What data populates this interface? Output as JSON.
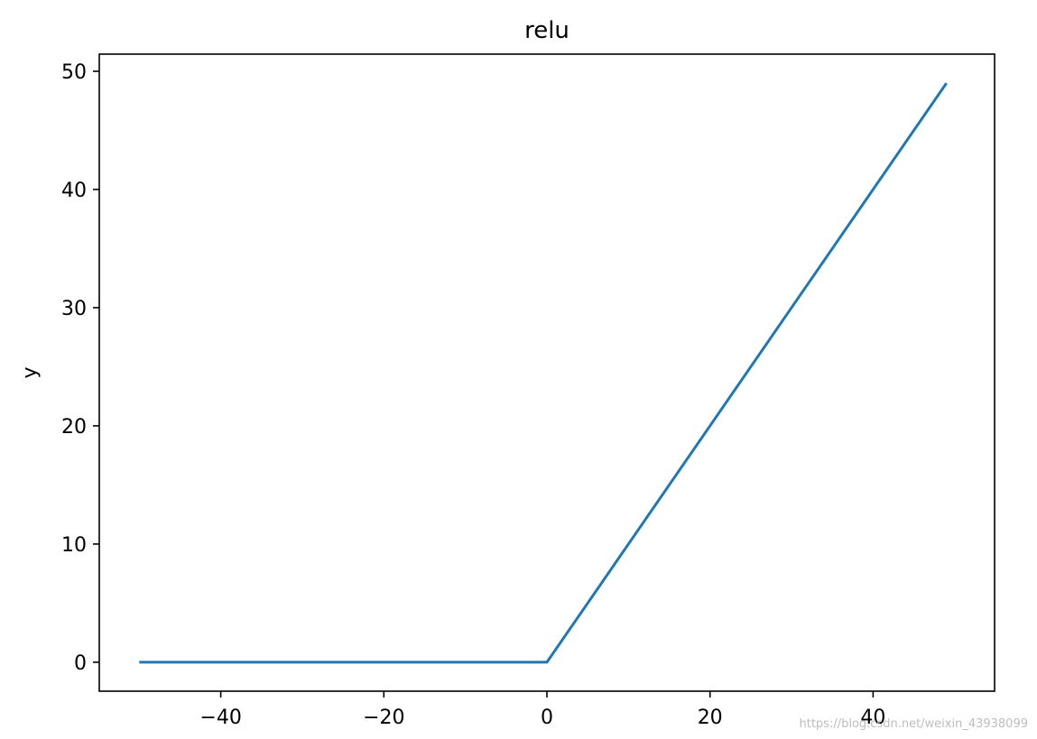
{
  "chart_data": {
    "type": "line",
    "title": "relu",
    "xlabel": "",
    "ylabel": "y",
    "xlim": [
      -54.9,
      54.9
    ],
    "ylim": [
      -2.45,
      51.45
    ],
    "xticks": [
      -40,
      -20,
      0,
      20,
      40
    ],
    "yticks": [
      0,
      10,
      20,
      30,
      40,
      50
    ],
    "xtick_labels": [
      "−40",
      "−20",
      "0",
      "20",
      "40"
    ],
    "ytick_labels": [
      "0",
      "10",
      "20",
      "30",
      "40",
      "50"
    ],
    "grid": false,
    "series": [
      {
        "x": [
          -50,
          0,
          49
        ],
        "y": [
          0,
          0,
          49
        ]
      }
    ],
    "colors": {
      "line": "#1f77b4",
      "axes": "#000000",
      "background": "#ffffff"
    }
  },
  "watermark": "https://blog.csdn.net/weixin_43938099"
}
